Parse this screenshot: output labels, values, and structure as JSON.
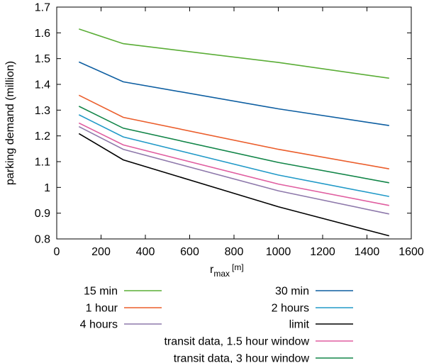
{
  "chart_data": {
    "type": "line",
    "title": "",
    "xlabel_main": "r",
    "xlabel_sub": "max",
    "xlabel_unit": "[m]",
    "ylabel": "parking demand (million)",
    "xlim": [
      0,
      1600
    ],
    "ylim": [
      0.8,
      1.7
    ],
    "xticks": [
      0,
      200,
      400,
      600,
      800,
      1000,
      1200,
      1400,
      1600
    ],
    "xtick_labels": [
      "0",
      "200",
      "400",
      "600",
      "800",
      "1000",
      "1200",
      "1400",
      "1600"
    ],
    "yticks": [
      0.8,
      0.9,
      1.0,
      1.1,
      1.2,
      1.3,
      1.4,
      1.5,
      1.6,
      1.7
    ],
    "ytick_labels": [
      "0.8",
      "0.9",
      "1",
      "1.1",
      "1.2",
      "1.3",
      "1.4",
      "1.5",
      "1.6",
      "1.7"
    ],
    "grid": false,
    "legend_position": "below",
    "x": [
      100,
      300,
      1000,
      1500
    ],
    "series": [
      {
        "name": "15 min",
        "color": "#5aad36",
        "values": [
          1.615,
          1.558,
          1.485,
          1.424
        ]
      },
      {
        "name": "30 min",
        "color": "#0d5ea1",
        "values": [
          1.487,
          1.41,
          1.305,
          1.24
        ]
      },
      {
        "name": "1 hour",
        "color": "#eb5e2c",
        "values": [
          1.358,
          1.272,
          1.148,
          1.072
        ]
      },
      {
        "name": "2 hours",
        "color": "#229ac8",
        "values": [
          1.282,
          1.196,
          1.048,
          0.965
        ]
      },
      {
        "name": "4 hours",
        "color": "#8e79ab",
        "values": [
          1.236,
          1.148,
          0.987,
          0.897
        ]
      },
      {
        "name": "limit",
        "color": "#000000",
        "values": [
          1.209,
          1.107,
          0.925,
          0.812
        ]
      },
      {
        "name": "transit data, 1.5 hour window",
        "color": "#e05ea0",
        "values": [
          1.25,
          1.165,
          1.013,
          0.93
        ]
      },
      {
        "name": "transit data, 3 hour window",
        "color": "#128548",
        "values": [
          1.315,
          1.23,
          1.097,
          1.018
        ]
      }
    ]
  }
}
